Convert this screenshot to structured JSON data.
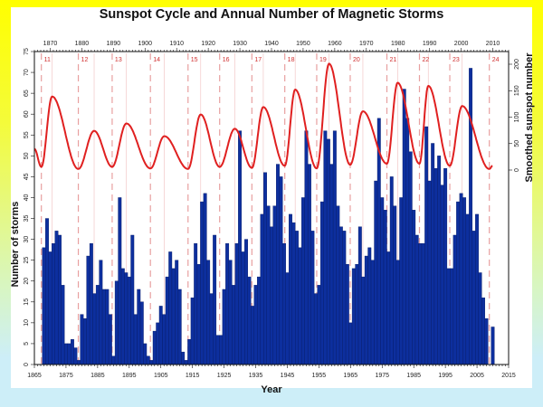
{
  "chart_data": {
    "type": "bar",
    "title": "Sunspot Cycle and Annual Number of Magnetic Storms",
    "xlabel": "Year",
    "ylabel": "Number of storms",
    "y2label": "Smoothed sunspot number",
    "xlim": [
      1865,
      2015
    ],
    "ylim": [
      0,
      75
    ],
    "y2lim": [
      0,
      200
    ],
    "x_ticks_bottom": [
      1865,
      1875,
      1885,
      1895,
      1905,
      1915,
      1925,
      1935,
      1945,
      1955,
      1965,
      1975,
      1985,
      1995,
      2005,
      2015
    ],
    "x_ticks_top": [
      1870,
      1880,
      1890,
      1900,
      1910,
      1920,
      1930,
      1940,
      1950,
      1960,
      1970,
      1980,
      1990,
      2000,
      2010
    ],
    "y_ticks": [
      0,
      5,
      10,
      15,
      20,
      25,
      30,
      35,
      40,
      45,
      50,
      55,
      60,
      65,
      70,
      75
    ],
    "y2_ticks": [
      0,
      50,
      100,
      150,
      200
    ],
    "colors": {
      "bars": "#0d2f9e",
      "bar_edge": "#061a66",
      "sunspot_line": "#e02020",
      "cycle_lines": "#e8a0a0"
    },
    "storms": {
      "start_year": 1868,
      "values": [
        28,
        35,
        27,
        29,
        32,
        31,
        19,
        5,
        5,
        6,
        4,
        1,
        12,
        11,
        26,
        29,
        17,
        19,
        25,
        18,
        18,
        12,
        2,
        20,
        40,
        23,
        22,
        21,
        31,
        12,
        18,
        15,
        5,
        2,
        1,
        8,
        10,
        14,
        12,
        21,
        27,
        23,
        25,
        18,
        3,
        1,
        6,
        16,
        29,
        24,
        39,
        41,
        25,
        17,
        31,
        7,
        7,
        18,
        29,
        25,
        19,
        29,
        56,
        27,
        30,
        21,
        14,
        19,
        21,
        36,
        46,
        38,
        33,
        38,
        48,
        45,
        29,
        22,
        36,
        34,
        32,
        28,
        40,
        56,
        48,
        32,
        17,
        19,
        39,
        56,
        54,
        48,
        56,
        38,
        33,
        32,
        24,
        10,
        23,
        24,
        33,
        21,
        26,
        28,
        25,
        44,
        59,
        40,
        37,
        27,
        45,
        38,
        25,
        40,
        66,
        59,
        51,
        37,
        31,
        29,
        29,
        57,
        44,
        53,
        47,
        50,
        43,
        47,
        23,
        23,
        31,
        39,
        41,
        40,
        36,
        71,
        32,
        36,
        22,
        16,
        11,
        0,
        9
      ]
    },
    "sunspot_extrema": [
      [
        1865,
        40
      ],
      [
        1867.2,
        6
      ],
      [
        1870.6,
        139
      ],
      [
        1878.9,
        2
      ],
      [
        1883.9,
        74
      ],
      [
        1889.6,
        6
      ],
      [
        1894.1,
        88
      ],
      [
        1901.7,
        3
      ],
      [
        1906.1,
        64
      ],
      [
        1913.6,
        2
      ],
      [
        1917.6,
        105
      ],
      [
        1923.6,
        6
      ],
      [
        1928.4,
        78
      ],
      [
        1933.8,
        4
      ],
      [
        1937.4,
        119
      ],
      [
        1944.2,
        8
      ],
      [
        1947.5,
        152
      ],
      [
        1954.3,
        3
      ],
      [
        1958.2,
        201
      ],
      [
        1964.9,
        10
      ],
      [
        1968.9,
        111
      ],
      [
        1976.5,
        12
      ],
      [
        1979.9,
        165
      ],
      [
        1986.8,
        12
      ],
      [
        1989.6,
        159
      ],
      [
        1996.4,
        8
      ],
      [
        2000.3,
        121
      ],
      [
        2008.9,
        2
      ],
      [
        2009.9,
        8
      ]
    ],
    "cycles": [
      {
        "label": "11",
        "start": 1867.2,
        "max": 1870.6
      },
      {
        "label": "12",
        "start": 1878.9,
        "max": 1883.9
      },
      {
        "label": "13",
        "start": 1889.6,
        "max": 1894.1
      },
      {
        "label": "14",
        "start": 1901.7,
        "max": 1906.1
      },
      {
        "label": "15",
        "start": 1913.6,
        "max": 1917.6
      },
      {
        "label": "16",
        "start": 1923.6,
        "max": 1928.4
      },
      {
        "label": "17",
        "start": 1933.8,
        "max": 1937.4
      },
      {
        "label": "18",
        "start": 1944.2,
        "max": 1947.5
      },
      {
        "label": "19",
        "start": 1954.3,
        "max": 1958.2
      },
      {
        "label": "20",
        "start": 1964.9,
        "max": 1968.9
      },
      {
        "label": "21",
        "start": 1976.5,
        "max": 1979.9
      },
      {
        "label": "22",
        "start": 1986.8,
        "max": 1989.6
      },
      {
        "label": "23",
        "start": 1996.4,
        "max": 2000.3
      },
      {
        "label": "24",
        "start": 2008.9,
        "max": null
      }
    ]
  }
}
